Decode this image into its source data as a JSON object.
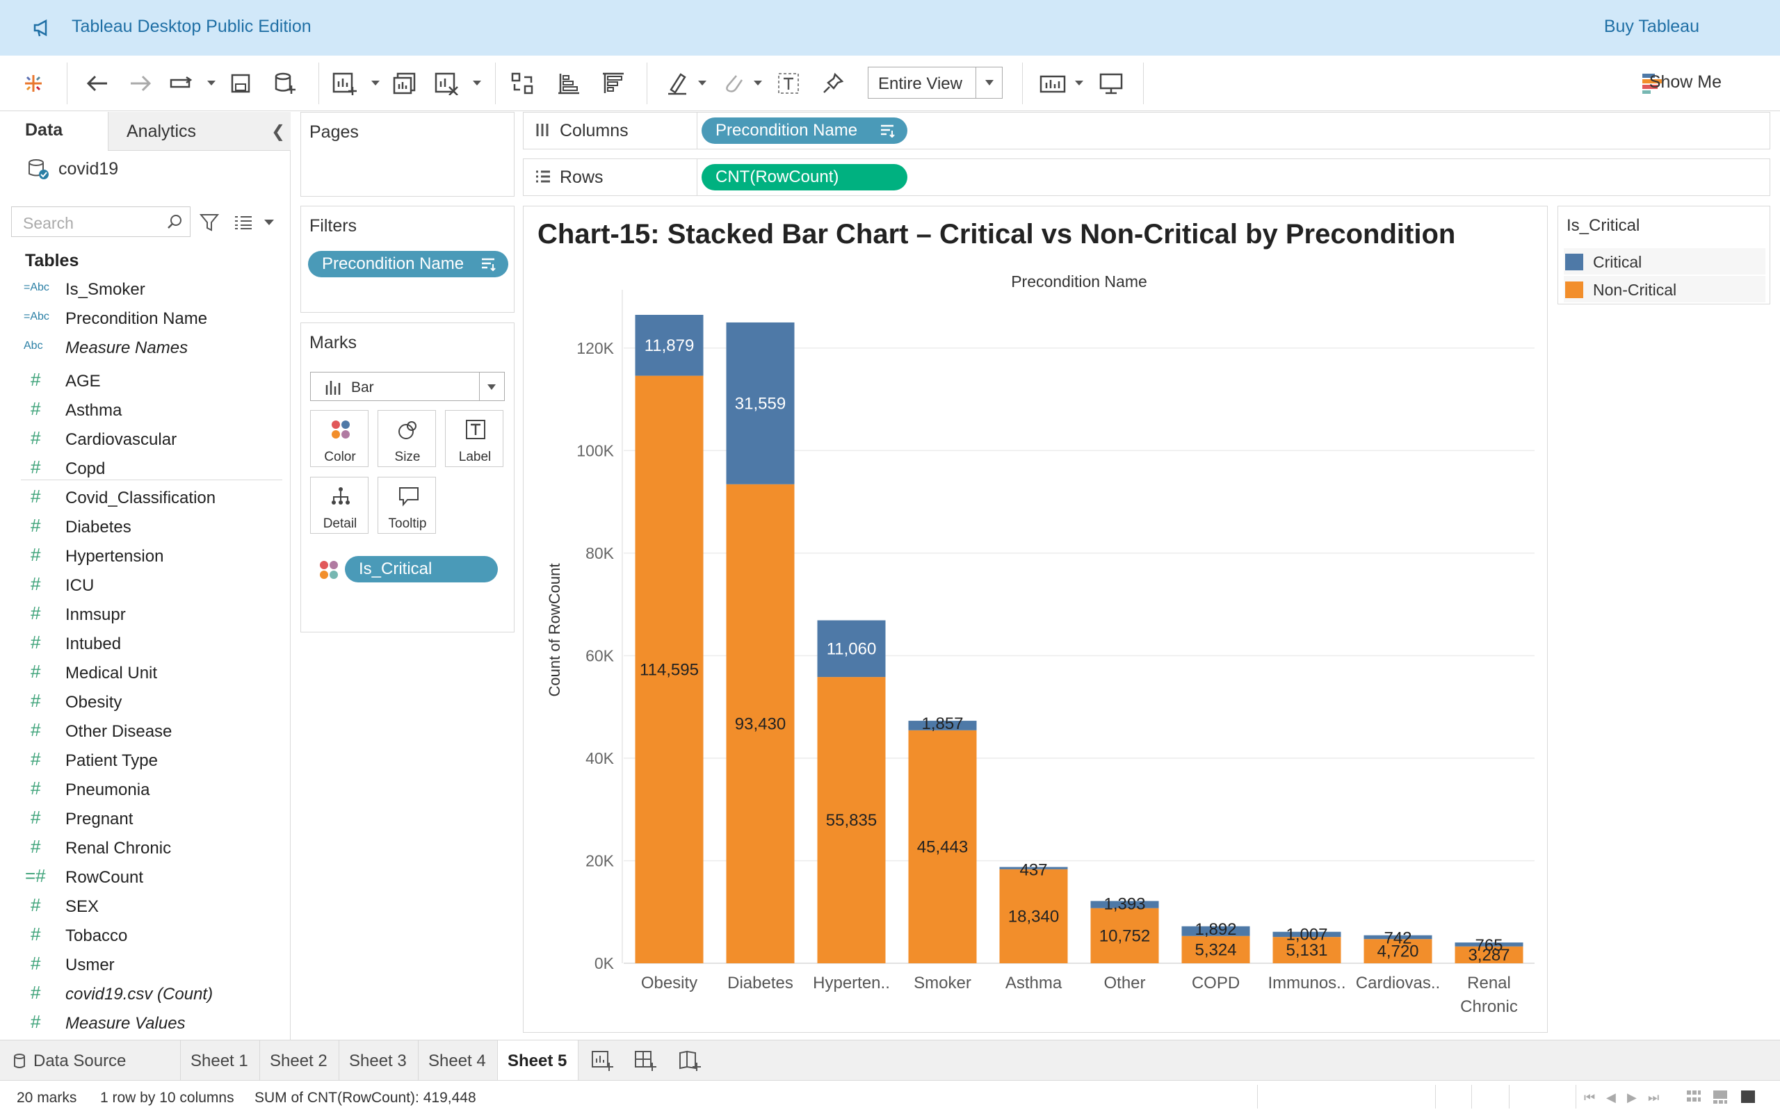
{
  "window": {
    "title": "Tableau Desktop Public Edition",
    "buy_label": "Buy Tableau"
  },
  "toolbar": {
    "view_mode": "Entire View",
    "show_me": "Show Me"
  },
  "data_pane": {
    "tab_data": "Data",
    "tab_analytics": "Analytics",
    "datasource": "covid19",
    "search_placeholder": "Search",
    "tables_label": "Tables",
    "fields": [
      {
        "type": "=Abc",
        "name": "Is_Smoker",
        "italic": false
      },
      {
        "type": "=Abc",
        "name": "Precondition Name",
        "italic": false
      },
      {
        "type": "Abc",
        "name": "Measure Names",
        "italic": true
      },
      {
        "type": "#",
        "name": "AGE",
        "italic": false
      },
      {
        "type": "#",
        "name": "Asthma",
        "italic": false
      },
      {
        "type": "#",
        "name": "Cardiovascular",
        "italic": false
      },
      {
        "type": "#",
        "name": "Copd",
        "italic": false
      },
      {
        "type": "#",
        "name": "Covid_Classification",
        "italic": false
      },
      {
        "type": "#",
        "name": "Diabetes",
        "italic": false
      },
      {
        "type": "#",
        "name": "Hypertension",
        "italic": false
      },
      {
        "type": "#",
        "name": "ICU",
        "italic": false
      },
      {
        "type": "#",
        "name": "Inmsupr",
        "italic": false
      },
      {
        "type": "#",
        "name": "Intubed",
        "italic": false
      },
      {
        "type": "#",
        "name": "Medical Unit",
        "italic": false
      },
      {
        "type": "#",
        "name": "Obesity",
        "italic": false
      },
      {
        "type": "#",
        "name": "Other Disease",
        "italic": false
      },
      {
        "type": "#",
        "name": "Patient Type",
        "italic": false
      },
      {
        "type": "#",
        "name": "Pneumonia",
        "italic": false
      },
      {
        "type": "#",
        "name": "Pregnant",
        "italic": false
      },
      {
        "type": "#",
        "name": "Renal Chronic",
        "italic": false
      },
      {
        "type": "=#",
        "name": "RowCount",
        "italic": false
      },
      {
        "type": "#",
        "name": "SEX",
        "italic": false
      },
      {
        "type": "#",
        "name": "Tobacco",
        "italic": false
      },
      {
        "type": "#",
        "name": "Usmer",
        "italic": false
      },
      {
        "type": "#",
        "name": "covid19.csv (Count)",
        "italic": true
      },
      {
        "type": "#",
        "name": "Measure Values",
        "italic": true
      }
    ]
  },
  "shelves": {
    "pages_label": "Pages",
    "filters_label": "Filters",
    "filter_pill": "Precondition Name",
    "marks_label": "Marks",
    "mark_type": "Bar",
    "mark_buttons": [
      "Color",
      "Size",
      "Label",
      "Detail",
      "Tooltip"
    ],
    "marks_pill": "Is_Critical",
    "columns_label": "Columns",
    "columns_pill": "Precondition Name",
    "rows_label": "Rows",
    "rows_pill": "CNT(RowCount)"
  },
  "legend": {
    "title": "Is_Critical",
    "items": [
      {
        "label": "Critical",
        "color": "#4e79a7"
      },
      {
        "label": "Non-Critical",
        "color": "#f28e2b"
      }
    ]
  },
  "chart_data": {
    "type": "bar",
    "stacked": true,
    "title": "Chart-15: Stacked Bar Chart – Critical vs Non-Critical by Precondition",
    "xlabel": "Precondition Name",
    "ylabel": "Count of RowCount",
    "ylim": [
      0,
      130000
    ],
    "yticks": [
      0,
      20000,
      40000,
      60000,
      80000,
      100000,
      120000
    ],
    "ytick_labels": [
      "0K",
      "20K",
      "40K",
      "60K",
      "80K",
      "100K",
      "120K"
    ],
    "categories": [
      "Obesity",
      "Diabetes",
      "Hyperten..",
      "Smoker",
      "Asthma",
      "Other",
      "COPD",
      "Immunos..",
      "Cardiovas..",
      "Renal\nChronic"
    ],
    "series": [
      {
        "name": "Non-Critical",
        "color": "#f28e2b",
        "values": [
          114595,
          93430,
          55835,
          45443,
          18340,
          10752,
          5324,
          5131,
          4720,
          3287
        ]
      },
      {
        "name": "Critical",
        "color": "#4e79a7",
        "values": [
          11879,
          31559,
          11060,
          1857,
          437,
          1393,
          1892,
          1007,
          742,
          765
        ]
      }
    ],
    "grid": true
  },
  "sheets": {
    "data_source": "Data Source",
    "tabs": [
      "Sheet 1",
      "Sheet 2",
      "Sheet 3",
      "Sheet 4",
      "Sheet 5"
    ],
    "active": "Sheet 5"
  },
  "status": {
    "marks": "20 marks",
    "dims": "1 row by 10 columns",
    "sum": "SUM of CNT(RowCount): 419,448"
  }
}
